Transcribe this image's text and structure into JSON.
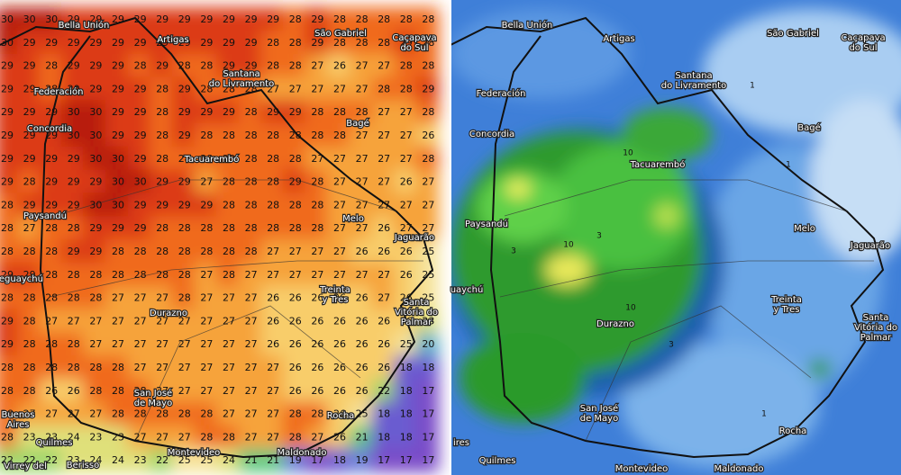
{
  "left_panel": {
    "temperatures": [
      [
        30,
        30,
        30,
        29,
        29,
        29,
        29,
        29,
        29,
        29,
        29,
        29,
        29,
        28,
        29,
        28,
        28,
        28,
        28,
        28
      ],
      [
        30,
        29,
        29,
        29,
        29,
        29,
        29,
        29,
        29,
        29,
        29,
        29,
        28,
        28,
        29,
        28,
        28,
        28,
        29,
        28
      ],
      [
        29,
        29,
        28,
        29,
        29,
        29,
        28,
        29,
        28,
        28,
        29,
        29,
        28,
        28,
        27,
        26,
        27,
        27,
        28,
        28
      ],
      [
        29,
        29,
        28,
        29,
        29,
        29,
        29,
        28,
        29,
        28,
        28,
        28,
        27,
        27,
        27,
        27,
        27,
        28,
        28,
        29
      ],
      [
        29,
        29,
        29,
        30,
        30,
        29,
        29,
        28,
        29,
        29,
        29,
        28,
        29,
        29,
        28,
        28,
        28,
        27,
        27,
        28
      ],
      [
        29,
        29,
        29,
        30,
        30,
        29,
        29,
        28,
        29,
        28,
        28,
        28,
        28,
        28,
        28,
        28,
        27,
        27,
        27,
        26
      ],
      [
        29,
        29,
        29,
        29,
        30,
        30,
        29,
        28,
        28,
        28,
        28,
        28,
        28,
        28,
        27,
        27,
        27,
        27,
        27,
        28
      ],
      [
        29,
        28,
        29,
        29,
        29,
        30,
        30,
        29,
        29,
        27,
        28,
        28,
        28,
        29,
        28,
        27,
        27,
        27,
        26,
        27
      ],
      [
        28,
        29,
        29,
        29,
        30,
        30,
        29,
        29,
        29,
        29,
        28,
        28,
        28,
        28,
        28,
        27,
        27,
        27,
        27,
        27
      ],
      [
        28,
        27,
        28,
        28,
        29,
        29,
        29,
        28,
        28,
        28,
        28,
        28,
        28,
        28,
        28,
        27,
        27,
        26,
        27,
        27
      ],
      [
        28,
        28,
        28,
        29,
        29,
        28,
        28,
        28,
        28,
        28,
        28,
        28,
        27,
        27,
        27,
        27,
        26,
        26,
        26,
        25
      ],
      [
        29,
        29,
        28,
        28,
        28,
        28,
        28,
        28,
        28,
        27,
        28,
        27,
        27,
        27,
        27,
        27,
        27,
        27,
        26,
        25
      ],
      [
        28,
        28,
        28,
        28,
        28,
        27,
        27,
        27,
        28,
        27,
        27,
        27,
        26,
        26,
        26,
        26,
        26,
        27,
        26,
        25
      ],
      [
        29,
        28,
        27,
        27,
        27,
        27,
        27,
        27,
        27,
        27,
        27,
        27,
        26,
        26,
        26,
        26,
        26,
        26,
        26,
        23
      ],
      [
        29,
        28,
        28,
        28,
        27,
        27,
        27,
        27,
        27,
        27,
        27,
        27,
        26,
        26,
        26,
        26,
        26,
        26,
        25,
        20
      ],
      [
        28,
        28,
        28,
        28,
        28,
        28,
        27,
        27,
        27,
        27,
        27,
        27,
        27,
        26,
        26,
        26,
        26,
        26,
        18,
        18
      ],
      [
        28,
        28,
        26,
        26,
        28,
        28,
        28,
        27,
        27,
        27,
        27,
        27,
        27,
        26,
        26,
        26,
        26,
        22,
        18,
        17
      ],
      [
        28,
        27,
        27,
        27,
        27,
        28,
        28,
        28,
        28,
        28,
        27,
        27,
        27,
        28,
        28,
        26,
        25,
        18,
        18,
        17
      ],
      [
        28,
        23,
        23,
        24,
        23,
        23,
        27,
        27,
        27,
        28,
        28,
        27,
        27,
        28,
        27,
        26,
        21,
        18,
        18,
        17
      ],
      [
        22,
        22,
        22,
        23,
        24,
        24,
        23,
        22,
        25,
        25,
        24,
        21,
        21,
        19,
        17,
        18,
        19,
        17,
        17,
        17
      ]
    ],
    "cities": [
      [
        "Bella Unión"
      ],
      [
        "Artigas"
      ],
      [
        "São Gabriel"
      ],
      [
        "Caçapava",
        "do Sul"
      ],
      [
        "Santana",
        "do Livramento"
      ],
      [
        "Federación"
      ],
      [
        "Concordia"
      ],
      [
        "Bagé"
      ],
      [
        "Tacuarembó"
      ],
      [
        "Paysandú"
      ],
      [
        "Melo"
      ],
      [
        "Jaguarão"
      ],
      [
        "leguaychú"
      ],
      [
        "Treinta",
        "y Tres"
      ],
      [
        "Durazno"
      ],
      [
        "Santa",
        "Vitória do",
        "Palmar"
      ],
      [
        "San José",
        "de Mayo"
      ],
      [
        "Rocha"
      ],
      [
        "Buenos",
        "Aires"
      ],
      [
        "Quilmes"
      ],
      [
        "Montevideo"
      ],
      [
        "Maldonado"
      ],
      [
        "Virrey del"
      ],
      [
        "Berisso"
      ]
    ]
  },
  "right_panel": {
    "cities": [
      [
        "Bella Unión"
      ],
      [
        "Artigas"
      ],
      [
        "São Gabriel"
      ],
      [
        "Caçapava",
        "do Sul"
      ],
      [
        "Santana",
        "do Livramento"
      ],
      [
        "Federación"
      ],
      [
        "Concordia"
      ],
      [
        "Bagé"
      ],
      [
        "Tacuarembó"
      ],
      [
        "Paysandú"
      ],
      [
        "Melo"
      ],
      [
        "Jaguarão"
      ],
      [
        "uaychú"
      ],
      [
        "Treinta",
        "y Tres"
      ],
      [
        "Durazno"
      ],
      [
        "Santa",
        "Vitória do",
        "Palmar"
      ],
      [
        "San José",
        "de Mayo"
      ],
      [
        "Rocha"
      ],
      [
        "ires"
      ],
      [
        "Quilmes"
      ],
      [
        "Montevideo"
      ],
      [
        "Maldonado"
      ]
    ],
    "contour_labels": [
      10,
      10,
      10,
      3,
      3,
      1,
      1,
      1,
      3
    ]
  }
}
